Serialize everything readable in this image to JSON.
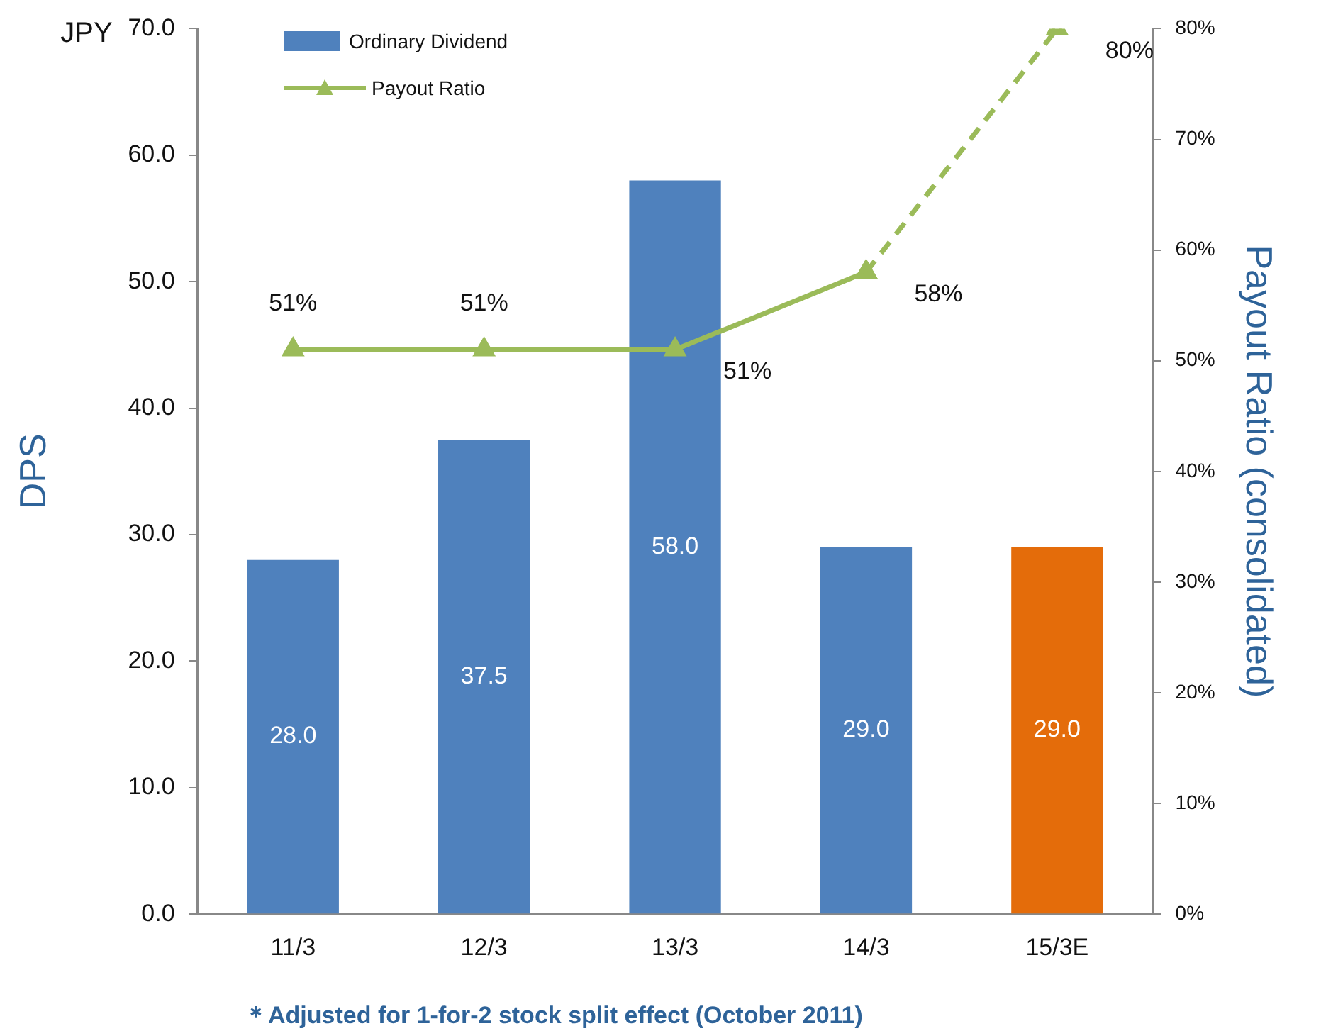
{
  "chart_data": {
    "type": "bar",
    "ylabel": "DPS",
    "y2label": "Payout Ratio (consolidated)",
    "annotations": [
      "JPY",
      "＊Adjusted for 1-for-2 stock split effect (October 2011)"
    ],
    "categories": [
      "11/3",
      "12/3",
      "13/3",
      "14/3",
      "15/3E"
    ],
    "series": [
      {
        "name": "Ordinary Dividend",
        "color": "#4f81bd",
        "colors": [
          "#4f81bd",
          "#4f81bd",
          "#4f81bd",
          "#4f81bd",
          "#e46c0a"
        ],
        "values": [
          28.0,
          37.5,
          58.0,
          29.0,
          29.0
        ],
        "value_labels": [
          "28.0",
          "37.5",
          "58.0",
          "29.0",
          "29.0"
        ]
      },
      {
        "name": "Payout Ratio",
        "type": "line",
        "axis": "y2",
        "color": "#9bbb59",
        "line_style": "solid",
        "values": [
          51,
          51,
          51,
          58,
          null
        ],
        "value_labels": [
          "51%",
          "51%",
          "51%",
          "58%",
          null
        ]
      },
      {
        "type": "line",
        "axis": "y2",
        "color": "#9bbb59",
        "line_style": "dashed",
        "values": [
          null,
          null,
          null,
          58,
          80
        ],
        "value_labels": [
          null,
          null,
          null,
          null,
          "80%"
        ]
      }
    ],
    "ylim": [
      0,
      70
    ],
    "yticks": [
      {
        "value": 0,
        "label": "0.0"
      },
      {
        "value": 10,
        "label": "10.0"
      },
      {
        "value": 20,
        "label": "20.0"
      },
      {
        "value": 30,
        "label": "30.0"
      },
      {
        "value": 40,
        "label": "40.0"
      },
      {
        "value": 50,
        "label": "50.0"
      },
      {
        "value": 60,
        "label": "60.0"
      },
      {
        "value": 70,
        "label": "70.0"
      }
    ],
    "y2lim": [
      0,
      80
    ],
    "y2ticks": [
      {
        "value": 0,
        "label": "0%"
      },
      {
        "value": 10,
        "label": "10%"
      },
      {
        "value": 20,
        "label": "20%"
      },
      {
        "value": 30,
        "label": "30%"
      },
      {
        "value": 40,
        "label": "40%"
      },
      {
        "value": 50,
        "label": "50%"
      },
      {
        "value": 60,
        "label": "60%"
      },
      {
        "value": 70,
        "label": "70%"
      },
      {
        "value": 80,
        "label": "80%"
      }
    ],
    "grid": false,
    "legend": "top left",
    "marker": "triangle"
  }
}
